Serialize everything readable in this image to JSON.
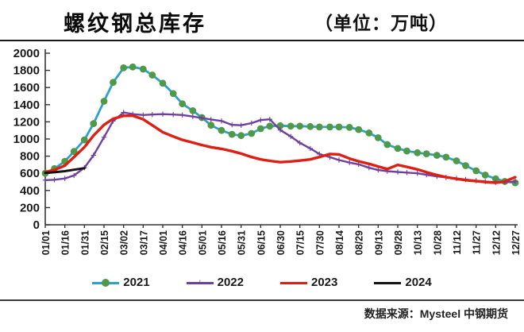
{
  "chart_data": {
    "type": "line",
    "title": "螺纹钢总库存",
    "unit_label": "（单位：万吨）",
    "source_note": "数据来源：Mysteel 中钢期货",
    "ylim": [
      0,
      2000
    ],
    "y_tick_step": 200,
    "x_tick_labels": [
      "01/01",
      "01/16",
      "01/31",
      "02/15",
      "03/02",
      "03/17",
      "04/01",
      "04/16",
      "05/01",
      "05/16",
      "05/31",
      "06/15",
      "06/30",
      "07/15",
      "07/30",
      "08/14",
      "08/29",
      "09/13",
      "09/28",
      "10/13",
      "10/28",
      "11/12",
      "11/27",
      "12/12",
      "12/27"
    ],
    "grid": false,
    "legend_position": "bottom",
    "axis_color": "#333333",
    "series": [
      {
        "name": "2021",
        "line_color": "#2da0d0",
        "marker": "circle",
        "marker_color": "#4f9a48",
        "line_width": 2.8,
        "points": [
          [
            "01/01",
            600
          ],
          [
            "01/08",
            655
          ],
          [
            "01/16",
            740
          ],
          [
            "01/23",
            855
          ],
          [
            "01/31",
            990
          ],
          [
            "02/07",
            1180
          ],
          [
            "02/15",
            1440
          ],
          [
            "02/22",
            1660
          ],
          [
            "03/02",
            1830
          ],
          [
            "03/09",
            1840
          ],
          [
            "03/17",
            1815
          ],
          [
            "03/24",
            1745
          ],
          [
            "04/01",
            1650
          ],
          [
            "04/09",
            1530
          ],
          [
            "04/16",
            1410
          ],
          [
            "04/24",
            1330
          ],
          [
            "05/01",
            1250
          ],
          [
            "05/08",
            1160
          ],
          [
            "05/16",
            1100
          ],
          [
            "05/24",
            1055
          ],
          [
            "05/31",
            1040
          ],
          [
            "06/08",
            1065
          ],
          [
            "06/15",
            1120
          ],
          [
            "06/22",
            1150
          ],
          [
            "06/30",
            1155
          ],
          [
            "07/08",
            1150
          ],
          [
            "07/15",
            1150
          ],
          [
            "07/23",
            1145
          ],
          [
            "07/30",
            1140
          ],
          [
            "08/07",
            1140
          ],
          [
            "08/14",
            1140
          ],
          [
            "08/22",
            1135
          ],
          [
            "08/29",
            1110
          ],
          [
            "09/06",
            1070
          ],
          [
            "09/13",
            1015
          ],
          [
            "09/20",
            935
          ],
          [
            "09/28",
            890
          ],
          [
            "10/05",
            860
          ],
          [
            "10/13",
            840
          ],
          [
            "10/20",
            828
          ],
          [
            "10/28",
            810
          ],
          [
            "11/04",
            788
          ],
          [
            "11/12",
            745
          ],
          [
            "11/19",
            690
          ],
          [
            "11/27",
            630
          ],
          [
            "12/04",
            580
          ],
          [
            "12/12",
            536
          ],
          [
            "12/19",
            506
          ],
          [
            "12/27",
            490
          ]
        ]
      },
      {
        "name": "2022",
        "line_color": "#6f3fa0",
        "marker": "plus",
        "marker_color": "#6f3fa0",
        "line_width": 2.4,
        "points": [
          [
            "01/01",
            520
          ],
          [
            "01/08",
            525
          ],
          [
            "01/16",
            540
          ],
          [
            "01/23",
            575
          ],
          [
            "01/31",
            665
          ],
          [
            "02/07",
            810
          ],
          [
            "02/15",
            1020
          ],
          [
            "02/22",
            1210
          ],
          [
            "03/02",
            1310
          ],
          [
            "03/09",
            1290
          ],
          [
            "03/17",
            1280
          ],
          [
            "03/24",
            1285
          ],
          [
            "04/01",
            1290
          ],
          [
            "04/09",
            1285
          ],
          [
            "04/16",
            1280
          ],
          [
            "04/24",
            1262
          ],
          [
            "05/01",
            1245
          ],
          [
            "05/08",
            1228
          ],
          [
            "05/16",
            1210
          ],
          [
            "05/24",
            1165
          ],
          [
            "05/31",
            1160
          ],
          [
            "06/08",
            1185
          ],
          [
            "06/15",
            1220
          ],
          [
            "06/22",
            1230
          ],
          [
            "06/30",
            1105
          ],
          [
            "07/08",
            1030
          ],
          [
            "07/15",
            955
          ],
          [
            "07/23",
            890
          ],
          [
            "07/30",
            825
          ],
          [
            "08/07",
            788
          ],
          [
            "08/14",
            755
          ],
          [
            "08/22",
            725
          ],
          [
            "08/29",
            705
          ],
          [
            "09/06",
            665
          ],
          [
            "09/13",
            638
          ],
          [
            "09/20",
            625
          ],
          [
            "09/28",
            615
          ],
          [
            "10/05",
            608
          ],
          [
            "10/13",
            600
          ],
          [
            "10/20",
            582
          ],
          [
            "10/28",
            565
          ],
          [
            "11/04",
            552
          ],
          [
            "11/12",
            540
          ],
          [
            "11/19",
            527
          ],
          [
            "11/27",
            515
          ],
          [
            "12/04",
            505
          ],
          [
            "12/12",
            495
          ],
          [
            "12/19",
            494
          ],
          [
            "12/27",
            505
          ]
        ]
      },
      {
        "name": "2023",
        "line_color": "#dd1f14",
        "marker": "none",
        "marker_color": "#dd1f14",
        "line_width": 3.4,
        "points": [
          [
            "01/01",
            615
          ],
          [
            "01/08",
            640
          ],
          [
            "01/16",
            690
          ],
          [
            "01/23",
            790
          ],
          [
            "01/31",
            905
          ],
          [
            "02/07",
            1040
          ],
          [
            "02/15",
            1165
          ],
          [
            "02/22",
            1235
          ],
          [
            "03/02",
            1270
          ],
          [
            "03/09",
            1272
          ],
          [
            "03/17",
            1230
          ],
          [
            "03/24",
            1160
          ],
          [
            "04/01",
            1080
          ],
          [
            "04/09",
            1030
          ],
          [
            "04/16",
            990
          ],
          [
            "04/24",
            958
          ],
          [
            "05/01",
            930
          ],
          [
            "05/08",
            905
          ],
          [
            "05/16",
            885
          ],
          [
            "05/24",
            858
          ],
          [
            "05/31",
            830
          ],
          [
            "06/08",
            790
          ],
          [
            "06/15",
            762
          ],
          [
            "06/22",
            745
          ],
          [
            "06/30",
            730
          ],
          [
            "07/08",
            738
          ],
          [
            "07/15",
            748
          ],
          [
            "07/23",
            762
          ],
          [
            "07/30",
            790
          ],
          [
            "08/07",
            825
          ],
          [
            "08/14",
            820
          ],
          [
            "08/22",
            772
          ],
          [
            "08/29",
            740
          ],
          [
            "09/06",
            710
          ],
          [
            "09/13",
            680
          ],
          [
            "09/20",
            650
          ],
          [
            "09/28",
            698
          ],
          [
            "10/05",
            675
          ],
          [
            "10/13",
            645
          ],
          [
            "10/20",
            612
          ],
          [
            "10/28",
            580
          ],
          [
            "11/04",
            556
          ],
          [
            "11/12",
            535
          ],
          [
            "11/19",
            520
          ],
          [
            "11/27",
            508
          ],
          [
            "12/04",
            498
          ],
          [
            "12/12",
            490
          ],
          [
            "12/19",
            505
          ],
          [
            "12/27",
            555
          ]
        ]
      },
      {
        "name": "2024",
        "line_color": "#141414",
        "marker": "none",
        "marker_color": "#141414",
        "line_width": 3.0,
        "points": [
          [
            "01/01",
            605
          ],
          [
            "01/08",
            612
          ],
          [
            "01/16",
            625
          ],
          [
            "01/23",
            642
          ],
          [
            "01/31",
            660
          ]
        ]
      }
    ]
  }
}
